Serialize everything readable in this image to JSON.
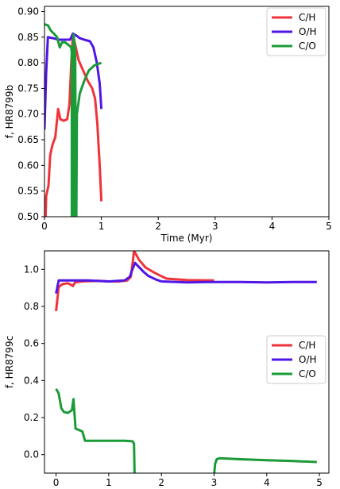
{
  "chart_data": [
    {
      "type": "line",
      "xlabel": "Time (Myr)",
      "ylabel": "f, HR8799b",
      "xlim": [
        0,
        5
      ],
      "ylim": [
        0.5,
        0.91
      ],
      "xticks": [
        "0",
        "1",
        "2",
        "3",
        "4",
        "5"
      ],
      "yticks": [
        "0.50",
        "0.55",
        "0.60",
        "0.65",
        "0.70",
        "0.75",
        "0.80",
        "0.85",
        "0.90"
      ],
      "grid": false,
      "legend_position": "top-right",
      "series": [
        {
          "name": "C/H",
          "color": "#f0333a",
          "points": [
            [
              0.02,
              0.5
            ],
            [
              0.03,
              0.54
            ],
            [
              0.07,
              0.56
            ],
            [
              0.1,
              0.62
            ],
            [
              0.14,
              0.64
            ],
            [
              0.19,
              0.655
            ],
            [
              0.24,
              0.71
            ],
            [
              0.28,
              0.69
            ],
            [
              0.34,
              0.687
            ],
            [
              0.4,
              0.69
            ],
            [
              0.44,
              0.72
            ],
            [
              0.47,
              0.8
            ],
            [
              0.5,
              0.855
            ],
            [
              0.55,
              0.83
            ],
            [
              0.6,
              0.805
            ],
            [
              0.68,
              0.785
            ],
            [
              0.76,
              0.765
            ],
            [
              0.84,
              0.75
            ],
            [
              0.89,
              0.73
            ],
            [
              0.93,
              0.68
            ],
            [
              0.97,
              0.6
            ],
            [
              1.0,
              0.53
            ]
          ]
        },
        {
          "name": "O/H",
          "color": "#5016e6",
          "points": [
            [
              0.0,
              0.67
            ],
            [
              0.03,
              0.78
            ],
            [
              0.06,
              0.85
            ],
            [
              0.15,
              0.848
            ],
            [
              0.25,
              0.845
            ],
            [
              0.35,
              0.845
            ],
            [
              0.45,
              0.845
            ],
            [
              0.5,
              0.857
            ],
            [
              0.56,
              0.853
            ],
            [
              0.62,
              0.848
            ],
            [
              0.7,
              0.845
            ],
            [
              0.8,
              0.842
            ],
            [
              0.86,
              0.83
            ],
            [
              0.92,
              0.8
            ],
            [
              0.97,
              0.76
            ],
            [
              1.0,
              0.71
            ]
          ]
        },
        {
          "name": "C/O",
          "color": "#1a9b38",
          "points": [
            [
              0.0,
              0.875
            ],
            [
              0.06,
              0.873
            ],
            [
              0.11,
              0.863
            ],
            [
              0.18,
              0.855
            ],
            [
              0.22,
              0.85
            ],
            [
              0.27,
              0.83
            ],
            [
              0.31,
              0.84
            ],
            [
              0.36,
              0.84
            ],
            [
              0.42,
              0.835
            ],
            [
              0.47,
              0.83
            ],
            [
              0.48,
              0.82
            ],
            [
              0.48,
              0.5
            ],
            [
              0.51,
              0.5
            ],
            [
              0.51,
              0.855
            ],
            [
              0.54,
              0.82
            ],
            [
              0.55,
              0.5
            ],
            [
              0.56,
              0.5
            ],
            [
              0.57,
              0.7
            ],
            [
              0.62,
              0.74
            ],
            [
              0.7,
              0.765
            ],
            [
              0.78,
              0.785
            ],
            [
              0.88,
              0.795
            ],
            [
              1.0,
              0.8
            ]
          ]
        }
      ]
    },
    {
      "type": "line",
      "xlabel": "Time (Myr)",
      "ylabel": "f, HR8799c",
      "xlim": [
        -0.22,
        5.18
      ],
      "ylim": [
        -0.1,
        1.1
      ],
      "xticks": [
        "0",
        "1",
        "2",
        "3",
        "4",
        "5"
      ],
      "yticks": [
        "0.0",
        "0.2",
        "0.4",
        "0.6",
        "0.8",
        "1.0"
      ],
      "grid": false,
      "legend_position": "center-right",
      "series": [
        {
          "name": "C/H",
          "color": "#f0333a",
          "points": [
            [
              0.0,
              0.775
            ],
            [
              0.05,
              0.905
            ],
            [
              0.12,
              0.92
            ],
            [
              0.22,
              0.925
            ],
            [
              0.28,
              0.918
            ],
            [
              0.32,
              0.91
            ],
            [
              0.36,
              0.93
            ],
            [
              0.5,
              0.935
            ],
            [
              0.8,
              0.938
            ],
            [
              1.0,
              0.935
            ],
            [
              1.2,
              0.935
            ],
            [
              1.35,
              0.94
            ],
            [
              1.42,
              0.96
            ],
            [
              1.46,
              1.05
            ],
            [
              1.48,
              1.1
            ],
            [
              1.52,
              1.08
            ],
            [
              1.58,
              1.05
            ],
            [
              1.7,
              1.01
            ],
            [
              1.85,
              0.985
            ],
            [
              1.95,
              0.97
            ],
            [
              2.1,
              0.95
            ],
            [
              2.5,
              0.942
            ],
            [
              3.0,
              0.94
            ]
          ]
        },
        {
          "name": "O/H",
          "color": "#5016e6",
          "points": [
            [
              0.0,
              0.87
            ],
            [
              0.05,
              0.94
            ],
            [
              0.3,
              0.94
            ],
            [
              0.6,
              0.94
            ],
            [
              1.0,
              0.935
            ],
            [
              1.3,
              0.94
            ],
            [
              1.4,
              0.96
            ],
            [
              1.45,
              1.0
            ],
            [
              1.5,
              1.035
            ],
            [
              1.55,
              1.02
            ],
            [
              1.65,
              0.99
            ],
            [
              1.75,
              0.965
            ],
            [
              1.9,
              0.945
            ],
            [
              2.0,
              0.935
            ],
            [
              2.5,
              0.93
            ],
            [
              3.0,
              0.932
            ],
            [
              3.5,
              0.932
            ],
            [
              4.0,
              0.93
            ],
            [
              4.5,
              0.932
            ],
            [
              4.95,
              0.932
            ]
          ]
        },
        {
          "name": "C/O",
          "color": "#1a9b38",
          "points": [
            [
              0.0,
              0.355
            ],
            [
              0.05,
              0.33
            ],
            [
              0.1,
              0.25
            ],
            [
              0.15,
              0.23
            ],
            [
              0.22,
              0.225
            ],
            [
              0.3,
              0.24
            ],
            [
              0.33,
              0.3
            ],
            [
              0.37,
              0.14
            ],
            [
              0.42,
              0.135
            ],
            [
              0.5,
              0.125
            ],
            [
              0.55,
              0.075
            ],
            [
              0.7,
              0.075
            ],
            [
              1.0,
              0.075
            ],
            [
              1.3,
              0.075
            ],
            [
              1.45,
              0.072
            ],
            [
              1.48,
              0.06
            ],
            [
              1.49,
              -0.11
            ]
          ]
        },
        {
          "name": "",
          "color": "#1a9b38",
          "points": [
            [
              3.0,
              -0.11
            ],
            [
              3.02,
              -0.05
            ],
            [
              3.05,
              -0.025
            ],
            [
              3.1,
              -0.02
            ],
            [
              3.5,
              -0.025
            ],
            [
              4.0,
              -0.03
            ],
            [
              4.5,
              -0.035
            ],
            [
              4.95,
              -0.04
            ]
          ]
        }
      ]
    }
  ]
}
